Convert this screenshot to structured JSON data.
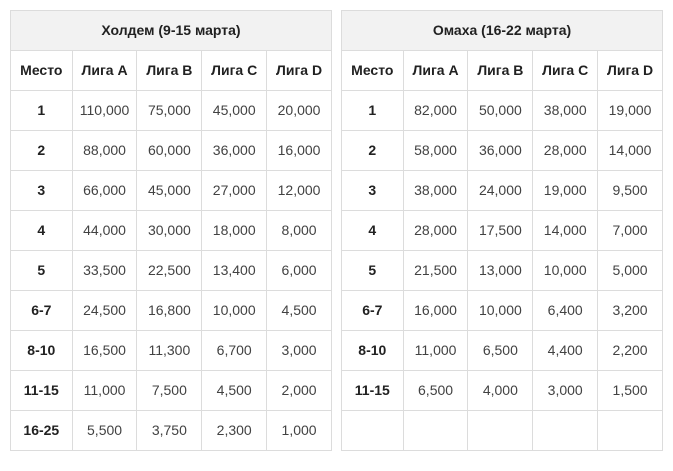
{
  "colors": {
    "header_bg": "#f2f2f2",
    "border": "#dcdcdc",
    "heading_text": "#212121",
    "value_text": "#424242",
    "page_bg": "#ffffff"
  },
  "tables": [
    {
      "title": "Холдем (9-15 марта)",
      "columns": [
        "Место",
        "Лига A",
        "Лига B",
        "Лига C",
        "Лига D"
      ],
      "rows": [
        [
          "1",
          "110,000",
          "75,000",
          "45,000",
          "20,000"
        ],
        [
          "2",
          "88,000",
          "60,000",
          "36,000",
          "16,000"
        ],
        [
          "3",
          "66,000",
          "45,000",
          "27,000",
          "12,000"
        ],
        [
          "4",
          "44,000",
          "30,000",
          "18,000",
          "8,000"
        ],
        [
          "5",
          "33,500",
          "22,500",
          "13,400",
          "6,000"
        ],
        [
          "6-7",
          "24,500",
          "16,800",
          "10,000",
          "4,500"
        ],
        [
          "8-10",
          "16,500",
          "11,300",
          "6,700",
          "3,000"
        ],
        [
          "11-15",
          "11,000",
          "7,500",
          "4,500",
          "2,000"
        ],
        [
          "16-25",
          "5,500",
          "3,750",
          "2,300",
          "1,000"
        ]
      ]
    },
    {
      "title": "Омаха (16-22 марта)",
      "columns": [
        "Место",
        "Лига A",
        "Лига B",
        "Лига C",
        "Лига D"
      ],
      "rows": [
        [
          "1",
          "82,000",
          "50,000",
          "38,000",
          "19,000"
        ],
        [
          "2",
          "58,000",
          "36,000",
          "28,000",
          "14,000"
        ],
        [
          "3",
          "38,000",
          "24,000",
          "19,000",
          "9,500"
        ],
        [
          "4",
          "28,000",
          "17,500",
          "14,000",
          "7,000"
        ],
        [
          "5",
          "21,500",
          "13,000",
          "10,000",
          "5,000"
        ],
        [
          "6-7",
          "16,000",
          "10,000",
          "6,400",
          "3,200"
        ],
        [
          "8-10",
          "11,000",
          "6,500",
          "4,400",
          "2,200"
        ],
        [
          "11-15",
          "6,500",
          "4,000",
          "3,000",
          "1,500"
        ],
        [
          "",
          "",
          "",
          "",
          ""
        ]
      ]
    }
  ]
}
